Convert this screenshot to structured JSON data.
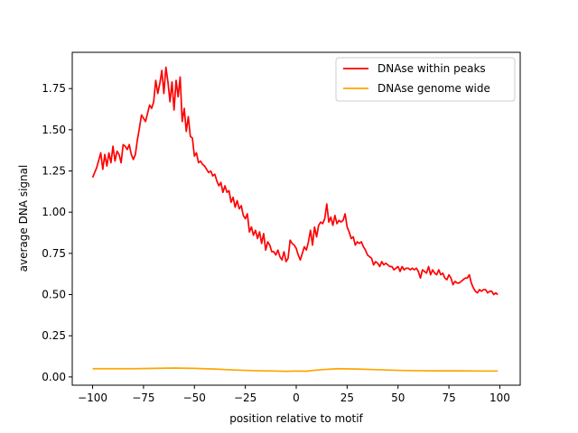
{
  "chart_data": {
    "type": "line",
    "title": "",
    "xlabel": "position relative to motif",
    "ylabel": "average DNA signal",
    "xlim": [
      -110,
      110
    ],
    "ylim": [
      -0.05,
      1.97
    ],
    "xticks": [
      -100,
      -75,
      -50,
      -25,
      0,
      25,
      50,
      75,
      100
    ],
    "xtick_labels": [
      "−100",
      "−75",
      "−50",
      "−25",
      "0",
      "25",
      "50",
      "75",
      "100"
    ],
    "yticks": [
      0.0,
      0.25,
      0.5,
      0.75,
      1.0,
      1.25,
      1.5,
      1.75
    ],
    "ytick_labels": [
      "0.00",
      "0.25",
      "0.50",
      "0.75",
      "1.00",
      "1.25",
      "1.50",
      "1.75"
    ],
    "grid": false,
    "legend_position": "top-right",
    "series": [
      {
        "name": "DNAse within peaks",
        "color": "#ff0000",
        "points": [
          [
            -100,
            1.21
          ],
          [
            -98,
            1.27
          ],
          [
            -96,
            1.36
          ],
          [
            -95,
            1.26
          ],
          [
            -94,
            1.35
          ],
          [
            -93,
            1.28
          ],
          [
            -92,
            1.36
          ],
          [
            -91,
            1.3
          ],
          [
            -90,
            1.4
          ],
          [
            -89,
            1.31
          ],
          [
            -88,
            1.37
          ],
          [
            -87,
            1.35
          ],
          [
            -86,
            1.3
          ],
          [
            -85,
            1.41
          ],
          [
            -84,
            1.4
          ],
          [
            -83,
            1.38
          ],
          [
            -82,
            1.41
          ],
          [
            -81,
            1.35
          ],
          [
            -80,
            1.32
          ],
          [
            -79,
            1.35
          ],
          [
            -78,
            1.44
          ],
          [
            -77,
            1.51
          ],
          [
            -76,
            1.59
          ],
          [
            -75,
            1.57
          ],
          [
            -74,
            1.55
          ],
          [
            -73,
            1.6
          ],
          [
            -72,
            1.65
          ],
          [
            -71,
            1.63
          ],
          [
            -70,
            1.67
          ],
          [
            -69,
            1.8
          ],
          [
            -68,
            1.72
          ],
          [
            -67,
            1.78
          ],
          [
            -66,
            1.86
          ],
          [
            -65,
            1.72
          ],
          [
            -64,
            1.88
          ],
          [
            -63,
            1.79
          ],
          [
            -62,
            1.67
          ],
          [
            -61,
            1.79
          ],
          [
            -60,
            1.62
          ],
          [
            -59,
            1.8
          ],
          [
            -58,
            1.7
          ],
          [
            -57,
            1.82
          ],
          [
            -56,
            1.55
          ],
          [
            -55,
            1.63
          ],
          [
            -54,
            1.49
          ],
          [
            -53,
            1.58
          ],
          [
            -52,
            1.46
          ],
          [
            -51,
            1.45
          ],
          [
            -50,
            1.34
          ],
          [
            -49,
            1.36
          ],
          [
            -48,
            1.3
          ],
          [
            -47,
            1.31
          ],
          [
            -46,
            1.29
          ],
          [
            -45,
            1.28
          ],
          [
            -44,
            1.26
          ],
          [
            -43,
            1.24
          ],
          [
            -42,
            1.25
          ],
          [
            -41,
            1.22
          ],
          [
            -40,
            1.23
          ],
          [
            -39,
            1.19
          ],
          [
            -38,
            1.16
          ],
          [
            -37,
            1.18
          ],
          [
            -36,
            1.12
          ],
          [
            -35,
            1.16
          ],
          [
            -34,
            1.12
          ],
          [
            -33,
            1.13
          ],
          [
            -32,
            1.06
          ],
          [
            -31,
            1.09
          ],
          [
            -30,
            1.03
          ],
          [
            -29,
            1.07
          ],
          [
            -28,
            1.02
          ],
          [
            -27,
            1.04
          ],
          [
            -26,
            0.98
          ],
          [
            -25,
            0.96
          ],
          [
            -24,
            0.99
          ],
          [
            -23,
            0.88
          ],
          [
            -22,
            0.91
          ],
          [
            -21,
            0.86
          ],
          [
            -20,
            0.89
          ],
          [
            -19,
            0.84
          ],
          [
            -18,
            0.88
          ],
          [
            -17,
            0.81
          ],
          [
            -16,
            0.87
          ],
          [
            -15,
            0.77
          ],
          [
            -14,
            0.82
          ],
          [
            -13,
            0.8
          ],
          [
            -12,
            0.76
          ],
          [
            -11,
            0.76
          ],
          [
            -10,
            0.74
          ],
          [
            -9,
            0.77
          ],
          [
            -8,
            0.73
          ],
          [
            -7,
            0.71
          ],
          [
            -6,
            0.76
          ],
          [
            -5,
            0.7
          ],
          [
            -4,
            0.72
          ],
          [
            -3,
            0.83
          ],
          [
            -2,
            0.81
          ],
          [
            -1,
            0.8
          ],
          [
            0,
            0.78
          ],
          [
            1,
            0.74
          ],
          [
            2,
            0.71
          ],
          [
            3,
            0.75
          ],
          [
            4,
            0.79
          ],
          [
            5,
            0.77
          ],
          [
            6,
            0.82
          ],
          [
            7,
            0.89
          ],
          [
            8,
            0.8
          ],
          [
            9,
            0.91
          ],
          [
            10,
            0.85
          ],
          [
            11,
            0.92
          ],
          [
            12,
            0.94
          ],
          [
            13,
            0.93
          ],
          [
            14,
            0.96
          ],
          [
            15,
            1.05
          ],
          [
            16,
            0.94
          ],
          [
            17,
            0.97
          ],
          [
            18,
            0.92
          ],
          [
            19,
            0.98
          ],
          [
            20,
            0.93
          ],
          [
            21,
            0.95
          ],
          [
            22,
            0.94
          ],
          [
            23,
            0.95
          ],
          [
            24,
            0.99
          ],
          [
            25,
            0.91
          ],
          [
            26,
            0.88
          ],
          [
            27,
            0.84
          ],
          [
            28,
            0.85
          ],
          [
            29,
            0.8
          ],
          [
            30,
            0.82
          ],
          [
            31,
            0.81
          ],
          [
            32,
            0.82
          ],
          [
            33,
            0.79
          ],
          [
            34,
            0.77
          ],
          [
            35,
            0.74
          ],
          [
            36,
            0.73
          ],
          [
            37,
            0.72
          ],
          [
            38,
            0.68
          ],
          [
            39,
            0.7
          ],
          [
            40,
            0.69
          ],
          [
            41,
            0.67
          ],
          [
            42,
            0.7
          ],
          [
            43,
            0.68
          ],
          [
            44,
            0.69
          ],
          [
            45,
            0.68
          ],
          [
            46,
            0.67
          ],
          [
            47,
            0.67
          ],
          [
            48,
            0.65
          ],
          [
            49,
            0.66
          ],
          [
            50,
            0.67
          ],
          [
            51,
            0.64
          ],
          [
            52,
            0.67
          ],
          [
            53,
            0.65
          ],
          [
            54,
            0.66
          ],
          [
            55,
            0.66
          ],
          [
            56,
            0.65
          ],
          [
            57,
            0.66
          ],
          [
            58,
            0.65
          ],
          [
            59,
            0.66
          ],
          [
            60,
            0.64
          ],
          [
            61,
            0.6
          ],
          [
            62,
            0.65
          ],
          [
            63,
            0.64
          ],
          [
            64,
            0.63
          ],
          [
            65,
            0.67
          ],
          [
            66,
            0.62
          ],
          [
            67,
            0.65
          ],
          [
            68,
            0.63
          ],
          [
            69,
            0.62
          ],
          [
            70,
            0.65
          ],
          [
            71,
            0.62
          ],
          [
            72,
            0.63
          ],
          [
            73,
            0.6
          ],
          [
            74,
            0.59
          ],
          [
            75,
            0.62
          ],
          [
            76,
            0.6
          ],
          [
            77,
            0.56
          ],
          [
            78,
            0.58
          ],
          [
            79,
            0.57
          ],
          [
            80,
            0.57
          ],
          [
            81,
            0.58
          ],
          [
            82,
            0.59
          ],
          [
            83,
            0.6
          ],
          [
            84,
            0.6
          ],
          [
            85,
            0.62
          ],
          [
            86,
            0.57
          ],
          [
            87,
            0.54
          ],
          [
            88,
            0.52
          ],
          [
            89,
            0.51
          ],
          [
            90,
            0.53
          ],
          [
            91,
            0.52
          ],
          [
            92,
            0.53
          ],
          [
            93,
            0.53
          ],
          [
            94,
            0.51
          ],
          [
            95,
            0.52
          ],
          [
            96,
            0.52
          ],
          [
            97,
            0.5
          ],
          [
            98,
            0.51
          ],
          [
            99,
            0.5
          ]
        ]
      },
      {
        "name": "DNAse genome wide",
        "color": "#ffa500",
        "points": [
          [
            -100,
            0.05
          ],
          [
            -90,
            0.05
          ],
          [
            -80,
            0.05
          ],
          [
            -70,
            0.052
          ],
          [
            -60,
            0.054
          ],
          [
            -50,
            0.052
          ],
          [
            -40,
            0.048
          ],
          [
            -30,
            0.042
          ],
          [
            -20,
            0.038
          ],
          [
            -10,
            0.036
          ],
          [
            -5,
            0.034
          ],
          [
            0,
            0.036
          ],
          [
            5,
            0.035
          ],
          [
            10,
            0.042
          ],
          [
            20,
            0.05
          ],
          [
            30,
            0.048
          ],
          [
            40,
            0.044
          ],
          [
            50,
            0.04
          ],
          [
            60,
            0.038
          ],
          [
            70,
            0.037
          ],
          [
            80,
            0.037
          ],
          [
            90,
            0.036
          ],
          [
            99,
            0.036
          ]
        ]
      }
    ]
  }
}
